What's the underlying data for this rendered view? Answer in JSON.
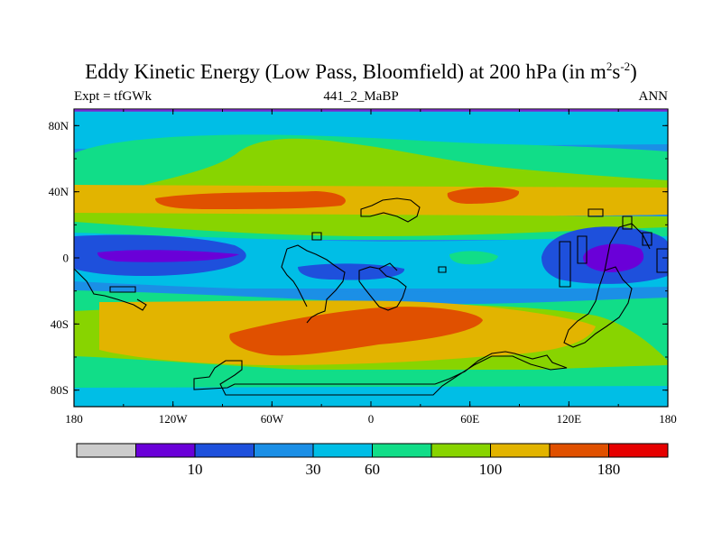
{
  "title": {
    "main": "Eddy Kinetic Energy (Low Pass, Bloomfield) at 200 hPa (in m",
    "sup1": "2",
    "mid": "s",
    "sup2": "-2",
    "end": ")"
  },
  "subtitle": {
    "left": "Expt = tfGWk",
    "center": "441_2_MaBP",
    "right": "ANN"
  },
  "axes": {
    "y_ticks": [
      "80N",
      "40N",
      "0",
      "40S",
      "80S"
    ],
    "y_values": [
      80,
      40,
      0,
      -40,
      -80
    ],
    "x_ticks": [
      "180",
      "120W",
      "60W",
      "0",
      "60E",
      "120E",
      "180"
    ],
    "x_values": [
      -180,
      -120,
      -60,
      0,
      60,
      120,
      180
    ],
    "lon_range": [
      -180,
      180
    ],
    "lat_range": [
      -90,
      90
    ]
  },
  "colorbar": {
    "colors": [
      "#cccccc",
      "#6a00d8",
      "#1e50dc",
      "#1b8fe6",
      "#00bee6",
      "#11dd88",
      "#88d400",
      "#e2b400",
      "#e05000",
      "#e60000"
    ],
    "labels": [
      {
        "text": "10",
        "boundary": 2
      },
      {
        "text": "30",
        "boundary": 4
      },
      {
        "text": "60",
        "boundary": 5
      },
      {
        "text": "100",
        "boundary": 7
      },
      {
        "text": "180",
        "boundary": 9
      }
    ]
  },
  "map": {
    "level_colors": [
      "#6a00d8",
      "#1e50dc",
      "#1b8fe6",
      "#00bee6",
      "#11dd88",
      "#88d400",
      "#e2b400",
      "#e05000"
    ],
    "base_color": "#1b8fe6"
  }
}
